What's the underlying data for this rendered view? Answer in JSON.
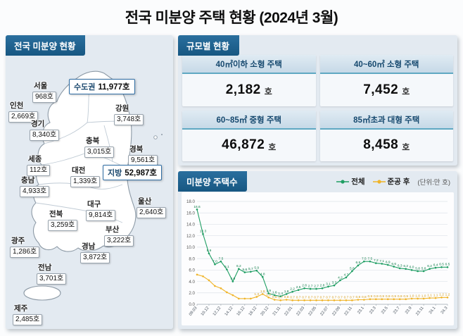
{
  "title": "전국 미분양 주택 현황 (2024년 3월)",
  "map_panel": {
    "header": "전국 미분양 현황",
    "highlights": [
      {
        "label": "수도권",
        "value": "11,977호"
      },
      {
        "label": "지방",
        "value": "52,987호"
      }
    ],
    "regions": [
      {
        "name": "서울",
        "value": "968호"
      },
      {
        "name": "인천",
        "value": "2,669호"
      },
      {
        "name": "경기",
        "value": "8,340호"
      },
      {
        "name": "강원",
        "value": "3,748호"
      },
      {
        "name": "충북",
        "value": "3,015호"
      },
      {
        "name": "세종",
        "value": "112호"
      },
      {
        "name": "경북",
        "value": "9,561호"
      },
      {
        "name": "대전",
        "value": "1,339호"
      },
      {
        "name": "충남",
        "value": "4,933호"
      },
      {
        "name": "대구",
        "value": "9,814호"
      },
      {
        "name": "울산",
        "value": "2,640호"
      },
      {
        "name": "전북",
        "value": "3,259호"
      },
      {
        "name": "부산",
        "value": "3,222호"
      },
      {
        "name": "광주",
        "value": "1,286호"
      },
      {
        "name": "경남",
        "value": "3,872호"
      },
      {
        "name": "전남",
        "value": "3,701호"
      },
      {
        "name": "제주",
        "value": "2,485호"
      }
    ]
  },
  "size_panel": {
    "header": "규모별 현황",
    "cells": [
      {
        "label": "40㎡이하 소형 주택",
        "value": "2,182",
        "unit": "호"
      },
      {
        "label": "40~60㎡ 소형 주택",
        "value": "7,452",
        "unit": "호"
      },
      {
        "label": "60~85㎡ 중형 주택",
        "value": "46,872",
        "unit": "호"
      },
      {
        "label": "85㎡초과 대형 주택",
        "value": "8,458",
        "unit": "호"
      }
    ]
  },
  "chart_panel": {
    "header": "미분양 주택수",
    "legend": [
      {
        "label": "전체",
        "color": "#1f9e63"
      },
      {
        "label": "준공 후",
        "color": "#f0b429"
      }
    ],
    "unit_note": "(단위:만 호)"
  },
  "chart_data": {
    "type": "line",
    "title": "미분양 주택수",
    "unit": "만 호",
    "ylim": [
      0,
      18
    ],
    "ytick_step": 2,
    "grid": true,
    "legend_position": "top-right",
    "x_labels": [
      "09.03",
      "",
      "10.12",
      "",
      "12.12",
      "",
      "14.12",
      "",
      "16.12",
      "",
      "18.12",
      "",
      "20.12",
      "",
      "21.11",
      "",
      "22.01",
      "",
      "22.03",
      "",
      "22.05",
      "",
      "22.07",
      "",
      "22.09",
      "",
      "22.11",
      "",
      "23.1",
      "",
      "23.3",
      "",
      "23.5",
      "",
      "23.7",
      "",
      "23.9",
      "",
      "23.11",
      "",
      "24.1",
      "",
      "24.3"
    ],
    "series": [
      {
        "name": "전체",
        "color": "#1f9e63",
        "label_color": "#0b7a46",
        "label_from": 0,
        "values": [
          16.6,
          12.3,
          8.9,
          7.0,
          7.5,
          6.1,
          4.0,
          6.2,
          5.6,
          5.7,
          5.9,
          4.8,
          1.9,
          1.6,
          1.4,
          1.8,
          2.2,
          2.5,
          2.8,
          2.7,
          2.7,
          2.8,
          3.1,
          3.3,
          4.2,
          4.7,
          5.8,
          6.8,
          7.5,
          7.5,
          7.2,
          7.1,
          6.9,
          6.6,
          6.3,
          6.2,
          6.0,
          5.8,
          5.8,
          6.2,
          6.4,
          6.5,
          6.5
        ]
      },
      {
        "name": "준공 후",
        "color": "#f0b429",
        "label_color": "#d29b16",
        "label_from": 10,
        "values": [
          5.2,
          4.9,
          4.2,
          3.2,
          2.8,
          2.1,
          1.6,
          1.0,
          1.0,
          1.0,
          1.3,
          1.8,
          1.2,
          0.8,
          0.7,
          0.8,
          0.7,
          0.7,
          0.7,
          0.7,
          0.7,
          0.7,
          0.7,
          0.7,
          0.7,
          0.7,
          0.7,
          0.8,
          0.8,
          0.9,
          0.9,
          0.9,
          0.9,
          0.9,
          0.9,
          0.9,
          1.0,
          1.0,
          1.0,
          1.1,
          1.1,
          1.2,
          1.2
        ]
      }
    ]
  }
}
